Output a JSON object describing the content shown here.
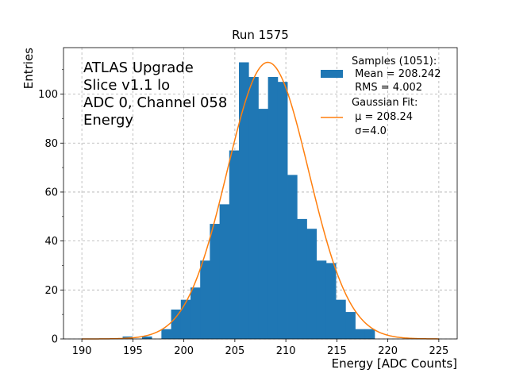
{
  "chart_data": {
    "type": "bar",
    "title": "Run 1575",
    "xlabel": "Energy [ADC Counts]",
    "ylabel": "Entries",
    "xlim": [
      188.2,
      226.8
    ],
    "ylim": [
      0,
      119
    ],
    "xticks": [
      190,
      195,
      200,
      205,
      210,
      215,
      220,
      225
    ],
    "yticks": [
      0,
      20,
      40,
      60,
      80,
      100
    ],
    "grid": true,
    "bin_width": 0.95,
    "annotation_lines": [
      "ATLAS Upgrade",
      "Slice v1.1 lo",
      "ADC 0, Channel 058",
      "Energy"
    ],
    "histogram": {
      "name": "Samples (1051):",
      "color": "#1f77b4",
      "bin_edges": [
        194.0,
        194.95,
        195.9,
        196.85,
        197.8,
        198.75,
        199.7,
        200.65,
        201.6,
        202.55,
        203.5,
        204.45,
        205.4,
        206.35,
        207.3,
        208.25,
        209.2,
        210.15,
        211.1,
        212.05,
        213.0,
        213.95,
        214.9,
        215.85,
        216.8,
        217.75,
        218.7,
        219.65
      ],
      "counts": [
        1,
        0,
        1,
        0,
        4,
        12,
        16,
        21,
        32,
        47,
        55,
        77,
        113,
        107,
        94,
        107,
        105,
        67,
        49,
        45,
        32,
        31,
        16,
        11,
        4,
        4,
        0
      ]
    },
    "fit": {
      "name": "Gaussian Fit:",
      "color": "#ff7f0e",
      "mu": 208.24,
      "sigma": 4.0,
      "amplitude": 113,
      "x_range": [
        190,
        225
      ]
    },
    "legend": {
      "position": "top-right",
      "samples_lines": [
        "Samples (1051):",
        " Mean = 208.242",
        " RMS = 4.002"
      ],
      "fit_lines": [
        "Gaussian Fit:",
        " μ = 208.24",
        " σ=4.0"
      ]
    }
  }
}
